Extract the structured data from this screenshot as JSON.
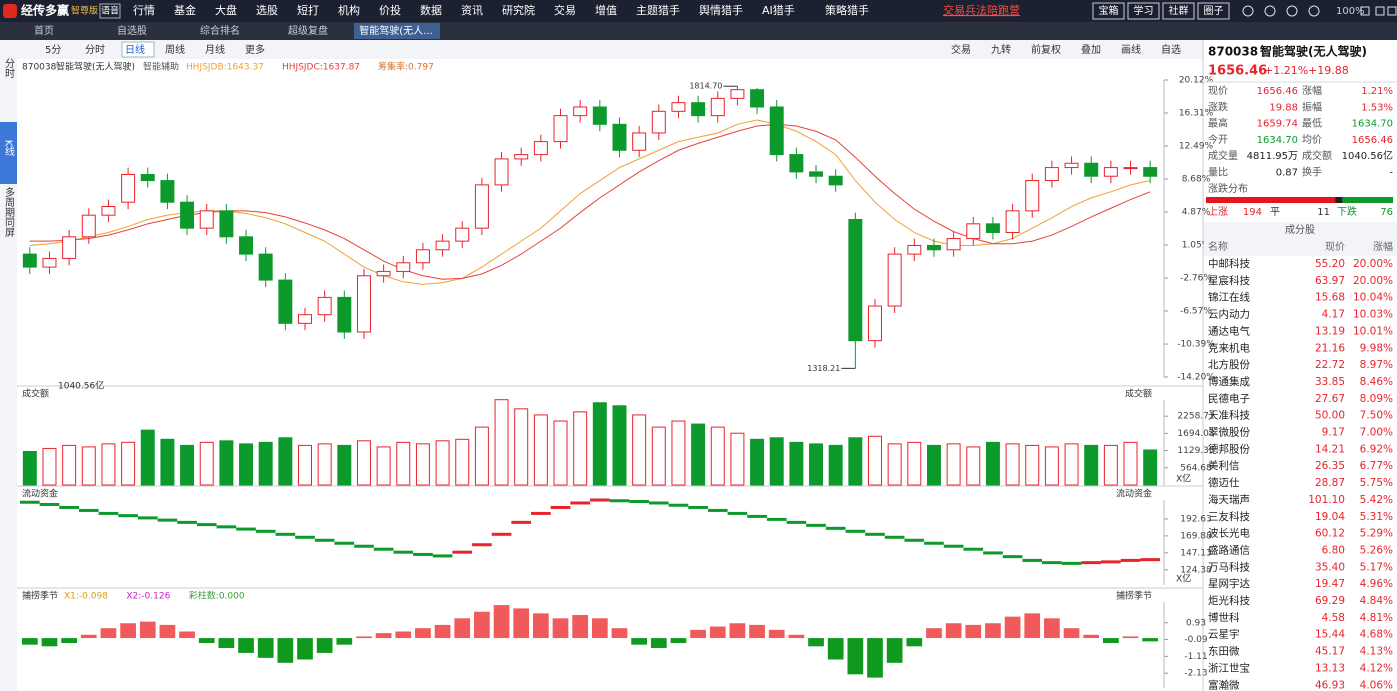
{
  "menu": {
    "logo": "经传多赢",
    "edition": "智尊版",
    "voice": "语音",
    "items": [
      "行情",
      "基金",
      "大盘",
      "选股",
      "短打",
      "机构",
      "价投",
      "数据",
      "资讯",
      "研究院",
      "交易",
      "增值",
      "主题猎手",
      "舆情猎手",
      "AI猎手",
      "策略猎手"
    ],
    "promo": "交易兵法陪跑营",
    "right": [
      "宝箱",
      "学习",
      "社群",
      "圈子"
    ],
    "zoom": "100%"
  },
  "tabs": [
    "首页",
    "自选股",
    "综合排名",
    "超级复盘",
    "智能驾驶(无人..."
  ],
  "sidebar": [
    "分时",
    "K线",
    "多周期同屏"
  ],
  "toolbar": {
    "left": [
      "5分",
      "分时",
      "日线",
      "周线",
      "月线",
      "更多"
    ],
    "right": [
      "交易",
      "九转",
      "前复权",
      "叠加",
      "画线",
      "自选"
    ]
  },
  "chart_data": [
    {
      "type": "candlestick",
      "code": "870038",
      "name": "智能驾驶(无人驾驶)",
      "indicator": "智能辅助",
      "annotation": "筹集率:0.797",
      "high_label": "1814.70",
      "low_label": "1318.21",
      "open": [
        0,
        -1.5,
        -0.5,
        2,
        4.5,
        6,
        9.2,
        8.5,
        6,
        3,
        5,
        2,
        0,
        -3,
        -8,
        -7,
        -5,
        -9,
        -2.5,
        -2,
        -1,
        0.5,
        1.5,
        3,
        8,
        11,
        11.5,
        13,
        16,
        17,
        15,
        12,
        14,
        16.5,
        17.5,
        16,
        18,
        19,
        17,
        11.5,
        9.5,
        9,
        4,
        -10,
        -6,
        0,
        1,
        0.5,
        1.8,
        3.5,
        2.5,
        5,
        8.5,
        10,
        10.5,
        9,
        10,
        10
      ],
      "close": [
        -1.5,
        -0.5,
        2,
        4.5,
        5.5,
        9.2,
        8.5,
        6,
        3,
        5,
        2,
        0,
        -3,
        -8,
        -7,
        -5,
        -9,
        -2.5,
        -2,
        -1,
        0.5,
        1.5,
        3,
        8,
        11,
        11.5,
        13,
        16,
        17,
        15,
        12,
        14,
        16.5,
        17.5,
        16,
        18,
        19,
        17,
        11.5,
        9.5,
        9,
        8,
        -10,
        -6,
        0,
        1,
        0.5,
        1.8,
        3.5,
        2.5,
        5,
        8.5,
        10,
        10.5,
        9,
        10,
        10,
        9
      ],
      "high": [
        0.8,
        0.3,
        2.8,
        5.3,
        6.3,
        10,
        10,
        9.3,
        6.8,
        5.8,
        5.8,
        2.8,
        0.8,
        -2.2,
        -6.2,
        -4.2,
        -4.2,
        -1.7,
        -1.2,
        -0.2,
        1.3,
        2.3,
        3.8,
        8.8,
        11.8,
        12.3,
        13.8,
        16.8,
        17.8,
        17.8,
        15.8,
        14.8,
        17.3,
        18.3,
        18.3,
        18.8,
        19.4,
        19.2,
        17.8,
        12.3,
        10.3,
        9.8,
        4.8,
        -5.2,
        0.8,
        1.8,
        1.8,
        2.6,
        4.3,
        4.3,
        5.8,
        9.3,
        10.8,
        11.3,
        11.3,
        10.8,
        10.8,
        10.8
      ],
      "low": [
        -2.3,
        -2.3,
        -1.3,
        1.2,
        3.7,
        5.2,
        7.7,
        5.2,
        2.2,
        2.2,
        1.2,
        -0.8,
        -3.8,
        -8.8,
        -8.8,
        -7.8,
        -9.8,
        -9.8,
        -3.3,
        -2.8,
        -1.8,
        -0.3,
        0.7,
        2.2,
        7.2,
        10.2,
        10.7,
        12.2,
        15.2,
        14.2,
        11.2,
        11.2,
        13.2,
        15.7,
        15.2,
        15.2,
        17.2,
        16.2,
        10.7,
        8.7,
        8.2,
        7.2,
        -13.2,
        -10.8,
        -6.8,
        -0.8,
        -0.3,
        -0.3,
        1,
        1.7,
        1.7,
        4.2,
        7.7,
        9.2,
        8.2,
        8.2,
        9.2,
        8.2
      ],
      "series": [
        {
          "name": "HHJSJDB:1643.37",
          "color": "#f0a030",
          "values": [
            1,
            1.2,
            1.5,
            2,
            2.5,
            3.2,
            4,
            4.5,
            4.8,
            5,
            5,
            4.7,
            4.2,
            3.5,
            2.5,
            1.5,
            0,
            -1.5,
            -2.5,
            -3.2,
            -3.5,
            -3.3,
            -2.8,
            -1.5,
            0,
            1.5,
            3,
            5,
            7,
            8.5,
            10,
            11,
            12,
            13,
            13.5,
            14,
            15,
            15.5,
            15,
            14.2,
            13,
            11.5,
            8.5,
            6,
            4,
            2.5,
            1.5,
            1,
            1,
            1.2,
            1.8,
            3,
            4.2,
            5.5,
            6.5,
            7.2,
            8,
            8.5
          ]
        },
        {
          "name": "HHJSJDC:1637.87",
          "color": "#e8403a",
          "values": [
            1.5,
            1.5,
            1.6,
            1.8,
            2.2,
            2.8,
            3.5,
            4,
            4.5,
            4.8,
            5,
            5,
            4.8,
            4.3,
            3.6,
            2.8,
            1.8,
            0.5,
            -0.8,
            -1.8,
            -2.5,
            -2.9,
            -2.8,
            -2.3,
            -1.3,
            0,
            1.5,
            3,
            4.8,
            6.5,
            8,
            9.5,
            10.8,
            12,
            12.8,
            13.5,
            14.2,
            14.8,
            15,
            14.8,
            14.2,
            13.2,
            11.2,
            9,
            7,
            5.2,
            3.8,
            2.6,
            1.8,
            1.2,
            1.2,
            1.5,
            2.2,
            3.2,
            4.3,
            5.3,
            6.3,
            7.2
          ]
        }
      ],
      "ylim": [
        -14.2,
        20.12
      ],
      "yticks": [
        {
          "value": -14.2,
          "label": "-14.20%"
        },
        {
          "value": -10.39,
          "label": "-10.39%"
        },
        {
          "value": -6.57,
          "label": "-6.57%"
        },
        {
          "value": -2.76,
          "label": "-2.76%"
        },
        {
          "value": 1.05,
          "label": "1.05%"
        },
        {
          "value": 4.87,
          "label": "4.87%"
        },
        {
          "value": 8.68,
          "label": "8.68%"
        },
        {
          "value": 12.49,
          "label": "12.49%"
        },
        {
          "value": 16.31,
          "label": "16.31%"
        },
        {
          "value": 20.12,
          "label": "20.12%"
        }
      ]
    },
    {
      "type": "bar",
      "title": "成交额",
      "legend": "1040.56亿",
      "unit": "X亿",
      "values": [
        1100,
        1200,
        1300,
        1250,
        1350,
        1400,
        1800,
        1500,
        1300,
        1400,
        1450,
        1350,
        1400,
        1550,
        1300,
        1350,
        1300,
        1450,
        1250,
        1400,
        1350,
        1450,
        1500,
        1900,
        2800,
        2500,
        2300,
        2100,
        2400,
        2700,
        2600,
        2300,
        1900,
        2100,
        2000,
        1900,
        1700,
        1500,
        1550,
        1400,
        1350,
        1300,
        1550,
        1600,
        1350,
        1400,
        1300,
        1350,
        1250,
        1400,
        1350,
        1300,
        1250,
        1350,
        1300,
        1300,
        1400,
        1150
      ],
      "ylim": [
        0,
        2790
      ],
      "yticks": [
        564.68,
        1129.35,
        1694.03,
        2258.71
      ]
    },
    {
      "type": "flow",
      "title": "流动资金",
      "unit": "X亿",
      "values": [
        215,
        212,
        208,
        204,
        200,
        197,
        194,
        191,
        188,
        185,
        182,
        179,
        176,
        172,
        168,
        164,
        160,
        156,
        152,
        148,
        145,
        143,
        148,
        158,
        172,
        188,
        200,
        208,
        214,
        218,
        217,
        216,
        214,
        211,
        208,
        204,
        200,
        196,
        192,
        188,
        184,
        180,
        176,
        172,
        168,
        164,
        160,
        156,
        152,
        147,
        142,
        137,
        134,
        133,
        134,
        135,
        137,
        138
      ],
      "ylim": [
        104,
        218
      ],
      "yticks": [
        124.38,
        147.13,
        169.88,
        192.63
      ]
    },
    {
      "type": "histogram",
      "title": "捕捞季节",
      "legend": [
        "X1:-0.098",
        "X2:-0.126",
        "彩柱数:0.000"
      ],
      "values": [
        -0.4,
        -0.5,
        -0.3,
        0.2,
        0.6,
        0.9,
        1,
        0.8,
        0.4,
        -0.3,
        -0.6,
        -0.9,
        -1.2,
        -1.5,
        -1.3,
        -0.9,
        -0.4,
        0.1,
        0.3,
        0.4,
        0.6,
        0.8,
        1.2,
        1.6,
        2,
        1.8,
        1.5,
        1.2,
        1.4,
        1.2,
        0.6,
        -0.4,
        -0.6,
        -0.3,
        0.5,
        0.7,
        0.9,
        0.8,
        0.5,
        0.2,
        -0.5,
        -1.3,
        -2.2,
        -2.4,
        -1.5,
        -0.5,
        0.6,
        0.9,
        0.8,
        0.9,
        1.3,
        1.5,
        1.2,
        0.6,
        0.2,
        -0.3,
        0.1,
        -0.2
      ],
      "ylim": [
        -3.03,
        2.19
      ],
      "yticks": [
        -2.13,
        -1.11,
        -0.09,
        0.93
      ]
    }
  ],
  "quote": {
    "code": "870038",
    "name": "智能驾驶(无人驾驶)",
    "price": "1656.46",
    "change_pct": "+1.21%",
    "change": "+19.88",
    "rows": [
      [
        "现价",
        "1656.46",
        "涨幅",
        "1.21%"
      ],
      [
        "涨跌",
        "19.88",
        "振幅",
        "1.53%"
      ],
      [
        "最高",
        "1659.74",
        "最低",
        "1634.70"
      ],
      [
        "今开",
        "1634.70",
        "均价",
        "1656.46"
      ],
      [
        "成交量",
        "4811.95万",
        "成交额",
        "1040.56亿"
      ],
      [
        "量比",
        "0.87",
        "换手",
        "-"
      ]
    ]
  },
  "distribution": {
    "title": "涨跌分布",
    "up_label": "上涨",
    "up": 194,
    "flat_label": "平",
    "flat": 11,
    "down_label": "下跌",
    "down": 76
  },
  "constituents": {
    "title": "成分股",
    "header": [
      "名称",
      "现价",
      "涨幅"
    ],
    "rows": [
      [
        "中邮科技",
        "55.20",
        "20.00%"
      ],
      [
        "星宸科技",
        "63.97",
        "20.00%"
      ],
      [
        "锦江在线",
        "15.68",
        "10.04%"
      ],
      [
        "云内动力",
        "4.17",
        "10.03%"
      ],
      [
        "通达电气",
        "13.19",
        "10.01%"
      ],
      [
        "克来机电",
        "21.16",
        "9.98%"
      ],
      [
        "北方股份",
        "22.72",
        "8.97%"
      ],
      [
        "博通集成",
        "33.85",
        "8.46%"
      ],
      [
        "民德电子",
        "27.67",
        "8.09%"
      ],
      [
        "天准科技",
        "50.00",
        "7.50%"
      ],
      [
        "翠微股份",
        "9.17",
        "7.00%"
      ],
      [
        "德邦股份",
        "14.21",
        "6.92%"
      ],
      [
        "美利信",
        "26.35",
        "6.77%"
      ],
      [
        "德迈仕",
        "28.87",
        "5.75%"
      ],
      [
        "海天瑞声",
        "101.10",
        "5.42%"
      ],
      [
        "三友科技",
        "19.04",
        "5.31%"
      ],
      [
        "波长光电",
        "60.12",
        "5.29%"
      ],
      [
        "盛路通信",
        "6.80",
        "5.26%"
      ],
      [
        "万马科技",
        "35.40",
        "5.17%"
      ],
      [
        "星网宇达",
        "19.47",
        "4.96%"
      ],
      [
        "炬光科技",
        "69.29",
        "4.84%"
      ],
      [
        "博世科",
        "4.58",
        "4.81%"
      ],
      [
        "云星宇",
        "15.44",
        "4.68%"
      ],
      [
        "东田微",
        "45.17",
        "4.13%"
      ],
      [
        "浙江世宝",
        "13.13",
        "4.12%"
      ],
      [
        "富瀚微",
        "46.93",
        "4.06%"
      ]
    ]
  }
}
